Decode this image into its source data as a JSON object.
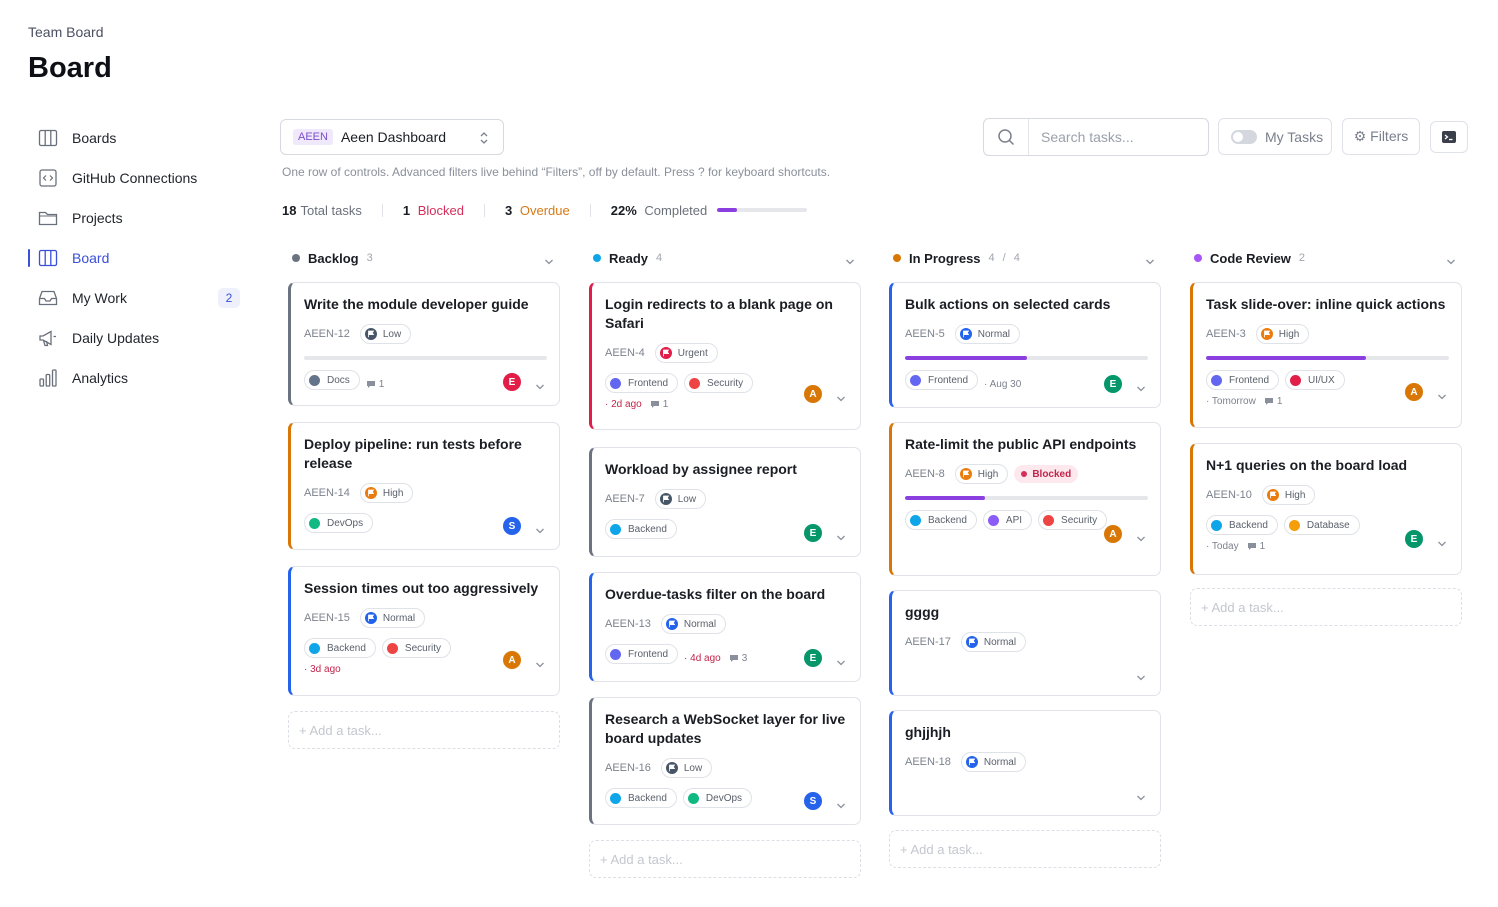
{
  "header": {
    "breadcrumb": "Team Board",
    "title": "Board"
  },
  "sidebar": {
    "items": [
      {
        "label": "Boards",
        "icon": "columns-icon"
      },
      {
        "label": "GitHub Connections",
        "icon": "code-box-icon"
      },
      {
        "label": "Projects",
        "icon": "folder-icon"
      },
      {
        "label": "Board",
        "icon": "columns-icon",
        "active": true
      },
      {
        "label": "My Work",
        "icon": "inbox-icon",
        "badge": "2"
      },
      {
        "label": "Daily Updates",
        "icon": "megaphone-icon"
      },
      {
        "label": "Analytics",
        "icon": "bar-chart-icon"
      }
    ]
  },
  "toolbar": {
    "board_key": "AEEN",
    "board_name": "Aeen Dashboard",
    "search_placeholder": "Search tasks...",
    "my_tasks_label": "My Tasks",
    "filters_label": "⚙ Filters",
    "helper": "One row of controls. Advanced filters live behind “Filters”, off by default. Press ? for keyboard shortcuts."
  },
  "stats": {
    "total_value": "18",
    "total_label": "Total tasks",
    "blocked_value": "1",
    "blocked_label": "Blocked",
    "overdue_value": "3",
    "overdue_label": "Overdue",
    "completed_value": "22%",
    "completed_label": "Completed",
    "completed_fraction": 0.22
  },
  "add_task_label": "+ Add a task...",
  "colors": {
    "accent": "#3b4fd8",
    "progress": "#8b3fe0",
    "blocked": "#d32f5a",
    "overdue": "#d67a18"
  },
  "columns": [
    {
      "title": "Backlog",
      "count": "3",
      "dot": "#6b7280",
      "cards": [
        {
          "title": "Write the module developer guide",
          "id": "AEEN-12",
          "priority": "Low",
          "border": "#6b7280",
          "progress": 0,
          "tags": [
            {
              "label": "Docs",
              "color": "#64748b"
            }
          ],
          "due": "",
          "due_kind": "",
          "comments": "1",
          "avatar": "E",
          "avatar_color": "#e11d48",
          "meta_inline": true
        },
        {
          "title": "Deploy pipeline: run tests before release",
          "id": "AEEN-14",
          "priority": "High",
          "border": "#d97706",
          "tags": [
            {
              "label": "DevOps",
              "color": "#10b981"
            }
          ],
          "due": "",
          "comments": "",
          "avatar": "S",
          "avatar_color": "#2563eb"
        },
        {
          "title": "Session times out too aggressively",
          "id": "AEEN-15",
          "priority": "Normal",
          "border": "#2563eb",
          "tags": [
            {
              "label": "Backend",
              "color": "#0ea5e9"
            },
            {
              "label": "Security",
              "color": "#ef4444"
            }
          ],
          "due": "· 3d ago",
          "due_kind": "overdue",
          "comments": "",
          "avatar": "A",
          "avatar_color": "#d97706"
        }
      ]
    },
    {
      "title": "Ready",
      "count": "4",
      "dot": "#0ea5e9",
      "cards": [
        {
          "title": "Login redirects to a blank page on Safari",
          "id": "AEEN-4",
          "priority": "Urgent",
          "border": "#e11d48",
          "tags": [
            {
              "label": "Frontend",
              "color": "#6366f1"
            },
            {
              "label": "Security",
              "color": "#ef4444"
            }
          ],
          "due": "· 2d ago",
          "due_kind": "overdue",
          "comments": "1",
          "avatar": "A",
          "avatar_color": "#d97706"
        },
        {
          "title": "Workload by assignee report",
          "id": "AEEN-7",
          "priority": "Low",
          "border": "#6b7280",
          "tags": [
            {
              "label": "Backend",
              "color": "#0ea5e9"
            }
          ],
          "due": "",
          "comments": "",
          "avatar": "E",
          "avatar_color": "#059669"
        },
        {
          "title": "Overdue-tasks filter on the board",
          "id": "AEEN-13",
          "priority": "Normal",
          "border": "#2563eb",
          "tags": [
            {
              "label": "Frontend",
              "color": "#6366f1"
            }
          ],
          "due": "· 4d ago",
          "due_kind": "overdue",
          "comments": "3",
          "avatar": "E",
          "avatar_color": "#059669",
          "meta_inline": true
        },
        {
          "title": "Research a WebSocket layer for live board updates",
          "id": "AEEN-16",
          "priority": "Low",
          "border": "#6b7280",
          "tags": [
            {
              "label": "Backend",
              "color": "#0ea5e9"
            },
            {
              "label": "DevOps",
              "color": "#10b981"
            }
          ],
          "due": "",
          "comments": "",
          "avatar": "S",
          "avatar_color": "#2563eb"
        }
      ]
    },
    {
      "title": "In Progress",
      "count": "4",
      "wip": "4",
      "dot": "#d97706",
      "cards": [
        {
          "title": "Bulk actions on selected cards",
          "id": "AEEN-5",
          "priority": "Normal",
          "border": "#2563eb",
          "progress": 0.5,
          "tags": [
            {
              "label": "Frontend",
              "color": "#6366f1"
            }
          ],
          "due": "· Aug 30",
          "due_kind": "normal",
          "comments": "",
          "avatar": "E",
          "avatar_color": "#059669",
          "meta_inline": true
        },
        {
          "title": "Rate-limit the public API endpoints",
          "id": "AEEN-8",
          "priority": "High",
          "border": "#d97706",
          "progress": 0.33,
          "blocked": "Blocked",
          "tags": [
            {
              "label": "Backend",
              "color": "#0ea5e9"
            },
            {
              "label": "API",
              "color": "#8b5cf6"
            },
            {
              "label": "Security",
              "color": "#ef4444"
            }
          ],
          "due": "",
          "comments": "",
          "avatar": "A",
          "avatar_color": "#d97706"
        },
        {
          "title": "gggg",
          "id": "AEEN-17",
          "priority": "Normal",
          "border": "#2563eb",
          "tags": [],
          "due": "",
          "comments": "",
          "avatar": ""
        },
        {
          "title": "ghjjhjh",
          "id": "AEEN-18",
          "priority": "Normal",
          "border": "#2563eb",
          "tags": [],
          "due": "",
          "comments": "",
          "avatar": ""
        }
      ]
    },
    {
      "title": "Code Review",
      "count": "2",
      "dot": "#a855f7",
      "cards": [
        {
          "title": "Task slide-over: inline quick actions",
          "id": "AEEN-3",
          "priority": "High",
          "border": "#d97706",
          "progress": 0.66,
          "tags": [
            {
              "label": "Frontend",
              "color": "#6366f1"
            },
            {
              "label": "UI/UX",
              "color": "#e11d48"
            }
          ],
          "due": "· Tomorrow",
          "due_kind": "normal",
          "comments": "1",
          "avatar": "A",
          "avatar_color": "#d97706"
        },
        {
          "title": "N+1 queries on the board load",
          "id": "AEEN-10",
          "priority": "High",
          "border": "#d97706",
          "tags": [
            {
              "label": "Backend",
              "color": "#0ea5e9"
            },
            {
              "label": "Database",
              "color": "#f59e0b"
            }
          ],
          "due": "· Today",
          "due_kind": "normal",
          "comments": "1",
          "avatar": "E",
          "avatar_color": "#059669"
        }
      ]
    }
  ]
}
